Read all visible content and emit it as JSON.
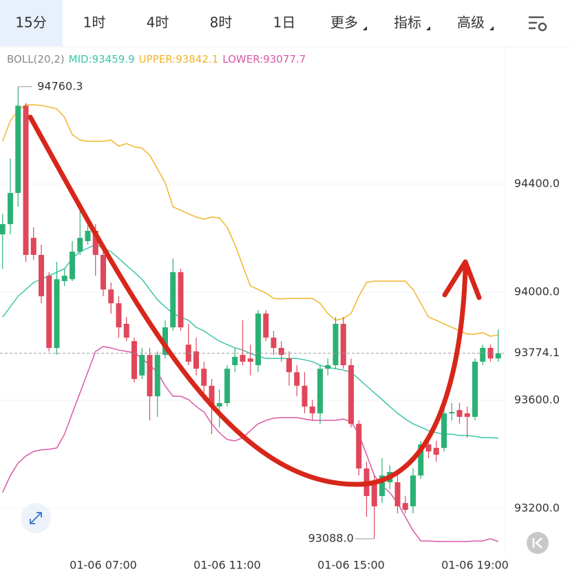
{
  "tabs": [
    "15分",
    "1时",
    "4时",
    "8时",
    "1日",
    "更多",
    "指标",
    "高级"
  ],
  "selected_tab": 0,
  "chart_data": {
    "type": "candlestick",
    "indicator": "BOLL(20,2)",
    "categories": [
      null,
      null,
      null,
      null,
      null,
      null,
      null,
      null,
      null,
      null,
      null,
      null,
      null,
      "01-06 07:00",
      null,
      null,
      null,
      null,
      null,
      null,
      null,
      null,
      null,
      null,
      null,
      null,
      null,
      null,
      null,
      "01-06 11:00",
      null,
      null,
      null,
      null,
      null,
      null,
      null,
      null,
      null,
      null,
      null,
      null,
      null,
      null,
      null,
      "01-06 15:00",
      null,
      null,
      null,
      null,
      null,
      null,
      null,
      null,
      null,
      null,
      null,
      null,
      null,
      null,
      null,
      "01-06 19:00",
      null,
      null,
      null
    ],
    "open": [
      94214,
      94252,
      94367,
      94690,
      94201,
      94138,
      94061,
      93794,
      94041,
      94048,
      94150,
      94189,
      94227,
      94138,
      94010,
      93959,
      93883,
      93819,
      93692,
      93768,
      93615,
      93768,
      93870,
      94074,
      93806,
      93781,
      93717,
      93654,
      93577,
      93590,
      93730,
      93768,
      93755,
      93730,
      93921,
      93832,
      93794,
      93755,
      93704,
      93654,
      93577,
      93552,
      93717,
      93730,
      93883,
      93730,
      93513,
      93348,
      93297,
      93246,
      93297,
      93297,
      93220,
      93208,
      93322,
      93437,
      93424,
      93424,
      93552,
      93564,
      93552,
      93539,
      93743,
      93794,
      93755
    ],
    "high": [
      94290,
      94494,
      94760.3,
      94700,
      94240,
      94176,
      94074,
      94112,
      94087,
      94189,
      94316,
      94265,
      94252,
      94163,
      94036,
      93985,
      93908,
      93832,
      93794,
      93794,
      93781,
      93896,
      94125,
      94087,
      93883,
      93832,
      93743,
      93679,
      93640,
      93730,
      93794,
      93896,
      93806,
      93934,
      93934,
      93857,
      93819,
      93781,
      93730,
      93704,
      93602,
      93730,
      93755,
      93908,
      93908,
      93755,
      93526,
      93373,
      93322,
      93386,
      93360,
      93322,
      93246,
      93348,
      93450,
      93462,
      93450,
      93615,
      93590,
      93590,
      93577,
      93755,
      93806,
      93806,
      93862
    ],
    "low": [
      94087,
      94214,
      94316,
      94112,
      94120,
      93959,
      93781,
      93768,
      94023,
      94041,
      94138,
      94176,
      94061,
      93985,
      93921,
      93832,
      93819,
      93666,
      93679,
      93526,
      93539,
      93755,
      93857,
      93857,
      93730,
      93692,
      93628,
      93475,
      93500,
      93577,
      93704,
      93730,
      93692,
      93704,
      93819,
      93768,
      93743,
      93654,
      93615,
      93552,
      93526,
      93513,
      93692,
      93717,
      93717,
      93500,
      93322,
      93169,
      93088,
      93220,
      93271,
      93182,
      93182,
      93182,
      93309,
      93386,
      93373,
      93411,
      93526,
      93513,
      93462,
      93526,
      93730,
      93743,
      93743
    ],
    "close": [
      94252,
      94367,
      94690,
      94138,
      94138,
      93985,
      93794,
      94048,
      94061,
      94150,
      94201,
      94227,
      94138,
      94010,
      93959,
      93870,
      93832,
      93679,
      93768,
      93615,
      93768,
      93870,
      94074,
      93870,
      93743,
      93717,
      93654,
      93577,
      93590,
      93717,
      93761,
      93743,
      93743,
      93921,
      93832,
      93794,
      93768,
      93704,
      93654,
      93577,
      93552,
      93717,
      93730,
      93883,
      93730,
      93513,
      93348,
      93246,
      93208,
      93322,
      93335,
      93208,
      93195,
      93322,
      93437,
      93411,
      93399,
      93552,
      93557,
      93539,
      93539,
      93743,
      93794,
      93755,
      93774.1
    ],
    "up_color": "#2bb174",
    "down_color": "#e0475a",
    "series": [
      {
        "name": "MID",
        "legend_label": "MID:93459.9",
        "color": "#3cc4a8",
        "values": [
          93908,
          93946,
          93985,
          94010,
          94036,
          94048,
          94061,
          94074,
          94087,
          94125,
          94150,
          94163,
          94176,
          94163,
          94150,
          94125,
          94099,
          94074,
          94048,
          94010,
          93972,
          93946,
          93921,
          93908,
          93896,
          93870,
          93857,
          93837,
          93819,
          93806,
          93794,
          93786,
          93773,
          93763,
          93755,
          93755,
          93755,
          93755,
          93755,
          93750,
          93743,
          93730,
          93722,
          93717,
          93712,
          93704,
          93679,
          93653,
          93628,
          93603,
          93577,
          93552,
          93531,
          93513,
          93501,
          93488,
          93480,
          93475,
          93475,
          93470,
          93470,
          93467,
          93462,
          93462,
          93459.9
        ]
      },
      {
        "name": "UPPER",
        "legend_label": "UPPER:93842.1",
        "color": "#f0b429",
        "values": [
          94558,
          94634,
          94673,
          94693,
          94693,
          94691,
          94685,
          94678,
          94647,
          94583,
          94563,
          94558,
          94558,
          94558,
          94563,
          94540,
          94550,
          94538,
          94533,
          94507,
          94456,
          94405,
          94316,
          94303,
          94290,
          94278,
          94270,
          94278,
          94275,
          94240,
          94176,
          94099,
          94023,
          94010,
          93997,
          93977,
          93975,
          93977,
          93977,
          93977,
          93977,
          93959,
          93921,
          93896,
          93903,
          93921,
          93985,
          94036,
          94041,
          94041,
          94041,
          94041,
          94041,
          94010,
          93959,
          93908,
          93896,
          93883,
          93870,
          93857,
          93845,
          93845,
          93850,
          93837,
          93842.1
        ]
      },
      {
        "name": "LOWER",
        "legend_label": "LOWER:93077.7",
        "color": "#d957a8",
        "values": [
          93259,
          93322,
          93368,
          93394,
          93411,
          93417,
          93419,
          93424,
          93475,
          93552,
          93628,
          93704,
          93781,
          93799,
          93794,
          93786,
          93781,
          93776,
          93755,
          93730,
          93704,
          93653,
          93615,
          93615,
          93603,
          93577,
          93557,
          93513,
          93480,
          93455,
          93450,
          93462,
          93488,
          93513,
          93526,
          93534,
          93536,
          93536,
          93536,
          93531,
          93526,
          93526,
          93526,
          93526,
          93531,
          93521,
          93475,
          93399,
          93322,
          93284,
          93259,
          93220,
          93169,
          93118,
          93080,
          93080,
          93078,
          93078,
          93078,
          93078,
          93078,
          93080,
          93080,
          93088,
          93077.7
        ]
      }
    ],
    "ylim": [
      93042,
      94826
    ],
    "yticks": [
      {
        "value": 93200,
        "label": "93200.0"
      },
      {
        "value": 93600,
        "label": "93600.0"
      },
      {
        "value": 94000,
        "label": "94000.0"
      },
      {
        "value": 94400,
        "label": "94400.0"
      }
    ],
    "grid": true,
    "annotations": [
      {
        "value": 94760.3,
        "label": "94760.3"
      },
      {
        "value": 93088,
        "label": "93088.0"
      }
    ],
    "last_price": 93774.1
  }
}
